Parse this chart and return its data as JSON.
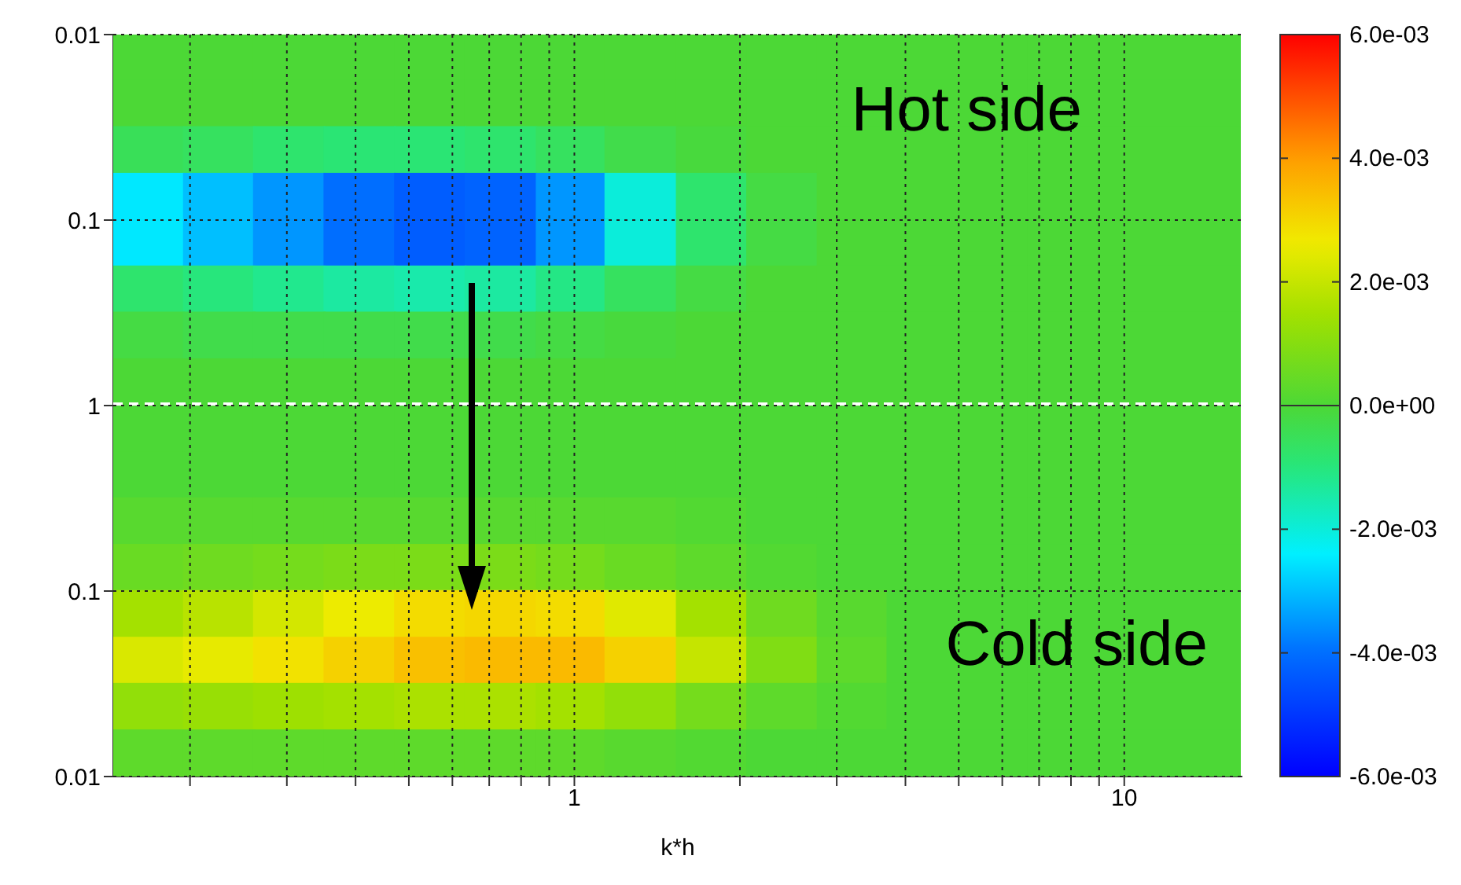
{
  "chart_data": [
    {
      "type": "heatmap",
      "annotations": [
        "Hot side"
      ],
      "log": "xy",
      "grid": true,
      "tick_labels": "y",
      "x": [
        0.168,
        0.226,
        0.303,
        0.407,
        0.547,
        0.735,
        0.99,
        1.32,
        1.78,
        2.39,
        3.21,
        4.3,
        5.78,
        7.76,
        10.4,
        14.0
      ],
      "y": [
        0.0133,
        0.0237,
        0.042,
        0.075,
        0.133,
        0.237,
        0.42,
        0.75
      ],
      "xlim": [
        0.145,
        16.4
      ],
      "ylim": [
        1,
        0.01
      ],
      "yticks": [
        0.01,
        0.1,
        1
      ],
      "ref_lines": [
        {
          "axis": "y",
          "value": 1,
          "color": "#ffffff",
          "line_style": "dashed"
        }
      ],
      "xticks": [
        {
          "value": 0.2,
          "label": null
        },
        {
          "value": 0.3,
          "label": null
        },
        {
          "value": 0.4,
          "label": null
        },
        {
          "value": 0.5,
          "label": null
        },
        {
          "value": 0.6,
          "label": null
        },
        {
          "value": 0.7,
          "label": null
        },
        {
          "value": 0.8,
          "label": null
        },
        {
          "value": 0.9,
          "label": null
        },
        {
          "value": 1,
          "label": null
        },
        {
          "value": 2,
          "label": null
        },
        {
          "value": 3,
          "label": null
        },
        {
          "value": 4,
          "label": null
        },
        {
          "value": 5,
          "label": null
        },
        {
          "value": 6,
          "label": null
        },
        {
          "value": 7,
          "label": null
        },
        {
          "value": 8,
          "label": null
        },
        {
          "value": 9,
          "label": null
        },
        {
          "value": 10,
          "label": null
        }
      ],
      "clim": [
        -0.006,
        0
      ],
      "cticks": [
        {
          "value": -0.006,
          "label": "-6.0e-03"
        },
        {
          "value": -0.004,
          "label": "-4.0e-03"
        },
        {
          "value": -0.002,
          "label": "-2.0e-03"
        },
        {
          "value": 0,
          "label": "0.0e+00"
        }
      ],
      "cells": [
        [
          0,
          0,
          0,
          0,
          0,
          0,
          0,
          0,
          0,
          0,
          0,
          0,
          0,
          0,
          0,
          0
        ],
        [
          0,
          0,
          0,
          0,
          0,
          0,
          0,
          0,
          0,
          0,
          0,
          0,
          0,
          0,
          0,
          0
        ],
        [
          -0.0005,
          -0.0006,
          -0.0008,
          -0.0009,
          -0.0009,
          -0.0008,
          -0.0006,
          -0.0003,
          -0.0001,
          0,
          0,
          0,
          0,
          0,
          0,
          0
        ],
        [
          -0.0025,
          -0.003,
          -0.0035,
          -0.004,
          -0.0043,
          -0.0042,
          -0.0035,
          -0.002,
          -0.0008,
          -0.0002,
          0,
          0,
          0,
          0,
          0,
          0
        ],
        [
          -0.0025,
          -0.003,
          -0.0035,
          -0.004,
          -0.0043,
          -0.0042,
          -0.0035,
          -0.002,
          -0.0008,
          -0.0002,
          0,
          0,
          0,
          0,
          0,
          0
        ],
        [
          -0.0008,
          -0.001,
          -0.0012,
          -0.0014,
          -0.0015,
          -0.0014,
          -0.0011,
          -0.0006,
          -0.0002,
          0,
          0,
          0,
          0,
          0,
          0,
          0
        ],
        [
          -0.0002,
          -0.0003,
          -0.0003,
          -0.0003,
          -0.0003,
          -0.0003,
          -0.0002,
          -0.0001,
          0,
          0,
          0,
          0,
          0,
          0,
          0,
          0
        ],
        [
          0,
          0,
          0,
          0,
          0,
          0,
          0,
          0,
          0,
          0,
          0,
          0,
          0,
          0,
          0,
          0
        ]
      ]
    },
    {
      "type": "heatmap",
      "annotations": [
        "Cold side"
      ],
      "xlabel": "k*h",
      "log": "xy",
      "grid": true,
      "x": [
        0.168,
        0.226,
        0.303,
        0.407,
        0.547,
        0.735,
        0.99,
        1.32,
        1.78,
        2.39,
        3.21,
        4.3,
        5.78,
        7.76,
        10.4,
        14.0
      ],
      "y": [
        0.75,
        0.42,
        0.237,
        0.133,
        0.075,
        0.042,
        0.0237,
        0.0133
      ],
      "xlim": [
        0.145,
        16.4
      ],
      "ylim": [
        0.01,
        1
      ],
      "xticks": [
        {
          "value": 0.2,
          "label": null
        },
        {
          "value": 0.3,
          "label": null
        },
        {
          "value": 0.4,
          "label": null
        },
        {
          "value": 0.5,
          "label": null
        },
        {
          "value": 0.6,
          "label": null
        },
        {
          "value": 0.7,
          "label": null
        },
        {
          "value": 0.8,
          "label": null
        },
        {
          "value": 0.9,
          "label": null
        },
        1,
        {
          "value": 2,
          "label": null
        },
        {
          "value": 3,
          "label": null
        },
        {
          "value": 4,
          "label": null
        },
        {
          "value": 5,
          "label": null
        },
        {
          "value": 6,
          "label": null
        },
        {
          "value": 7,
          "label": null
        },
        {
          "value": 8,
          "label": null
        },
        {
          "value": 9,
          "label": null
        },
        10
      ],
      "yticks": [
        0.01,
        0.1,
        {
          "value": 1,
          "label": null
        }
      ],
      "clim": [
        0,
        0.006
      ],
      "cticks": [
        {
          "value": 0,
          "label": null
        },
        {
          "value": 0.002,
          "label": "2.0e-03"
        },
        {
          "value": 0.004,
          "label": "4.0e-03"
        },
        {
          "value": 0.006,
          "label": "6.0e-03"
        }
      ],
      "cells": [
        [
          0,
          0,
          0,
          0,
          0,
          0,
          0,
          0,
          0,
          0,
          0,
          0,
          0,
          0,
          0,
          0
        ],
        [
          0,
          0,
          0,
          0,
          0,
          0,
          0,
          0,
          0,
          0,
          0,
          0,
          0,
          0,
          0,
          0
        ],
        [
          0.0002,
          0.0002,
          0.0002,
          0.0002,
          0.0002,
          0.0002,
          0.0002,
          0.0002,
          0.0001,
          0,
          0,
          0,
          0,
          0,
          0,
          0
        ],
        [
          0.0005,
          0.0006,
          0.0007,
          0.0008,
          0.0008,
          0.0008,
          0.0007,
          0.0005,
          0.0003,
          0.0001,
          0,
          0,
          0,
          0,
          0,
          0
        ],
        [
          0.0015,
          0.0018,
          0.0022,
          0.0026,
          0.0029,
          0.003,
          0.0029,
          0.0024,
          0.0015,
          0.0006,
          0.0002,
          0,
          0,
          0,
          0,
          0
        ],
        [
          0.0023,
          0.0025,
          0.0028,
          0.0031,
          0.0034,
          0.0035,
          0.0035,
          0.0031,
          0.002,
          0.0009,
          0.0003,
          0,
          0,
          0,
          0,
          0
        ],
        [
          0.0012,
          0.0013,
          0.0014,
          0.0015,
          0.0016,
          0.0016,
          0.0015,
          0.0012,
          0.0007,
          0.0003,
          0.0001,
          0,
          0,
          0,
          0,
          0
        ],
        [
          0.0003,
          0.0003,
          0.0003,
          0.0003,
          0.0003,
          0.0003,
          0.0003,
          0.0002,
          0.0001,
          0,
          0,
          0,
          0,
          0,
          0,
          0
        ]
      ]
    }
  ]
}
